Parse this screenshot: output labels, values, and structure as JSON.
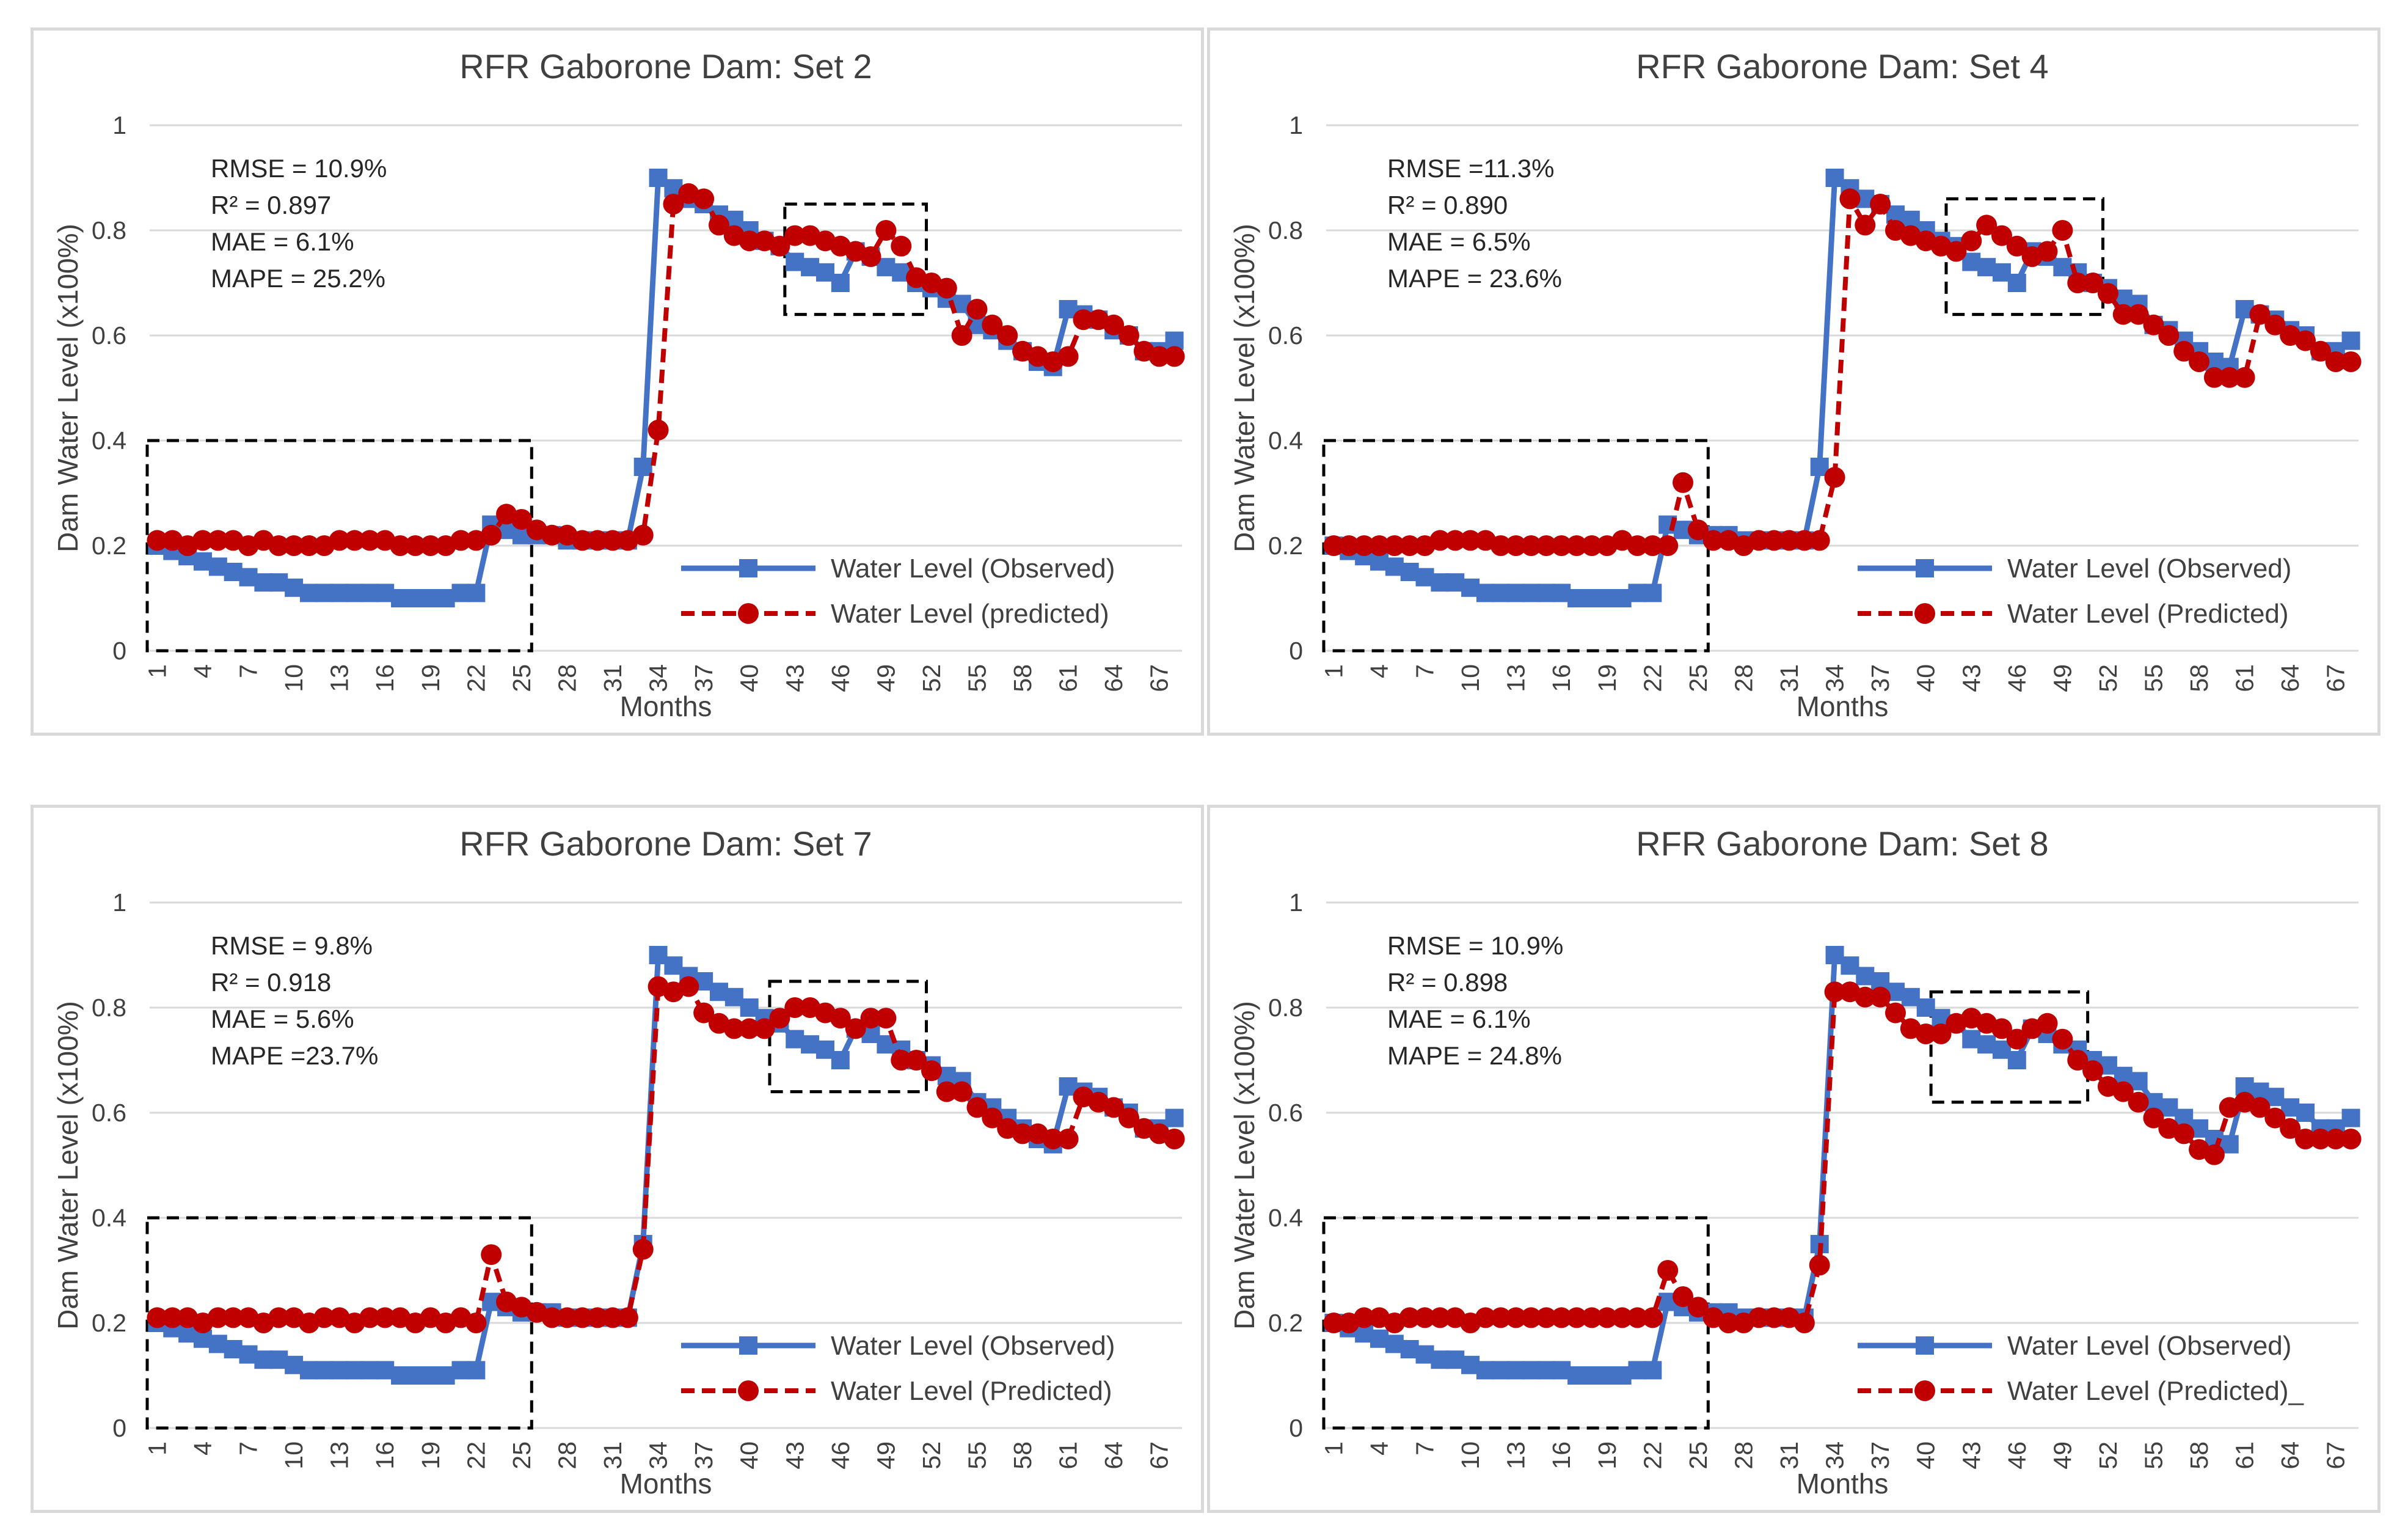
{
  "colors": {
    "observed": "#4472C4",
    "predicted": "#C00000",
    "grid": "#D9D9D9",
    "text": "#404040"
  },
  "chart_data": [
    {
      "type": "line",
      "title": "RFR Gaborone Dam: Set 2",
      "xlabel": "Months",
      "ylabel": "Dam Water Level (x100%)",
      "ylim": [
        0,
        1
      ],
      "y_ticks": [
        "0",
        "0.2",
        "0.4",
        "0.6",
        "0.8",
        "1"
      ],
      "x_ticks": [
        "1",
        "4",
        "7",
        "10",
        "13",
        "16",
        "19",
        "22",
        "25",
        "28",
        "31",
        "34",
        "37",
        "40",
        "43",
        "46",
        "49",
        "52",
        "55",
        "58",
        "61",
        "64",
        "67"
      ],
      "metrics": [
        {
          "name": "RMSE",
          "text": "RMSE = 10.9%"
        },
        {
          "name": "R2",
          "text": "R² = 0.897"
        },
        {
          "name": "MAE",
          "text": "MAE = 6.1%"
        },
        {
          "name": "MAPE",
          "text": "MAPE = 25.2%"
        }
      ],
      "highlight_regions": [
        {
          "x_range": [
            1,
            25
          ],
          "y_range": [
            0,
            0.4
          ]
        },
        {
          "x_range": [
            43,
            51
          ],
          "y_range": [
            0.64,
            0.85
          ]
        }
      ],
      "series": [
        {
          "name": "Water Level (Observed)",
          "style": "observed",
          "values": [
            0.2,
            0.19,
            0.18,
            0.17,
            0.16,
            0.15,
            0.14,
            0.13,
            0.13,
            0.12,
            0.11,
            0.11,
            0.11,
            0.11,
            0.11,
            0.11,
            0.1,
            0.1,
            0.1,
            0.1,
            0.11,
            0.11,
            0.24,
            0.23,
            0.22,
            0.22,
            0.22,
            0.21,
            0.21,
            0.21,
            0.21,
            0.21,
            0.35,
            0.9,
            0.88,
            0.86,
            0.85,
            0.83,
            0.82,
            0.8,
            0.78,
            0.77,
            0.74,
            0.73,
            0.72,
            0.7,
            0.76,
            0.75,
            0.73,
            0.72,
            0.7,
            0.69,
            0.67,
            0.66,
            0.62,
            0.61,
            0.59,
            0.57,
            0.55,
            0.54,
            0.65,
            0.64,
            0.63,
            0.61,
            0.6,
            0.57,
            0.57,
            0.59
          ]
        },
        {
          "name": "Water Level (predicted)",
          "style": "predicted",
          "values": [
            0.21,
            0.21,
            0.2,
            0.21,
            0.21,
            0.21,
            0.2,
            0.21,
            0.2,
            0.2,
            0.2,
            0.2,
            0.21,
            0.21,
            0.21,
            0.21,
            0.2,
            0.2,
            0.2,
            0.2,
            0.21,
            0.21,
            0.22,
            0.26,
            0.25,
            0.23,
            0.22,
            0.22,
            0.21,
            0.21,
            0.21,
            0.21,
            0.22,
            0.42,
            0.85,
            0.87,
            0.86,
            0.81,
            0.79,
            0.78,
            0.78,
            0.77,
            0.79,
            0.79,
            0.78,
            0.77,
            0.76,
            0.75,
            0.8,
            0.77,
            0.71,
            0.7,
            0.69,
            0.6,
            0.65,
            0.62,
            0.6,
            0.57,
            0.56,
            0.55,
            0.56,
            0.63,
            0.63,
            0.62,
            0.6,
            0.57,
            0.56,
            0.56
          ]
        }
      ],
      "legend": [
        {
          "label": "Water Level (Observed)",
          "style": "observed"
        },
        {
          "label": "Water Level (predicted)",
          "style": "predicted"
        }
      ]
    },
    {
      "type": "line",
      "title": "RFR Gaborone Dam: Set 4",
      "xlabel": "Months",
      "ylabel": "Dam Water Level (x100%)",
      "ylim": [
        0,
        1
      ],
      "y_ticks": [
        "0",
        "0.2",
        "0.4",
        "0.6",
        "0.8",
        "1"
      ],
      "x_ticks": [
        "1",
        "4",
        "7",
        "10",
        "13",
        "16",
        "19",
        "22",
        "25",
        "28",
        "31",
        "34",
        "37",
        "40",
        "43",
        "46",
        "49",
        "52",
        "55",
        "58",
        "61",
        "64",
        "67"
      ],
      "metrics": [
        {
          "name": "RMSE",
          "text": "RMSE =11.3%"
        },
        {
          "name": "R2",
          "text": "R² = 0.890"
        },
        {
          "name": "MAE",
          "text": "MAE = 6.5%"
        },
        {
          "name": "MAPE",
          "text": "MAPE = 23.6%"
        }
      ],
      "highlight_regions": [
        {
          "x_range": [
            1,
            25
          ],
          "y_range": [
            0,
            0.4
          ]
        },
        {
          "x_range": [
            42,
            51
          ],
          "y_range": [
            0.64,
            0.86
          ]
        }
      ],
      "series": [
        {
          "name": "Water Level (Observed)",
          "style": "observed",
          "values": [
            0.2,
            0.19,
            0.18,
            0.17,
            0.16,
            0.15,
            0.14,
            0.13,
            0.13,
            0.12,
            0.11,
            0.11,
            0.11,
            0.11,
            0.11,
            0.11,
            0.1,
            0.1,
            0.1,
            0.1,
            0.11,
            0.11,
            0.24,
            0.23,
            0.22,
            0.22,
            0.22,
            0.21,
            0.21,
            0.21,
            0.21,
            0.21,
            0.35,
            0.9,
            0.88,
            0.86,
            0.85,
            0.83,
            0.82,
            0.8,
            0.78,
            0.77,
            0.74,
            0.73,
            0.72,
            0.7,
            0.76,
            0.75,
            0.73,
            0.72,
            0.7,
            0.69,
            0.67,
            0.66,
            0.62,
            0.61,
            0.59,
            0.57,
            0.55,
            0.54,
            0.65,
            0.64,
            0.63,
            0.61,
            0.6,
            0.57,
            0.57,
            0.59
          ]
        },
        {
          "name": "Water Level (Predicted)",
          "style": "predicted",
          "values": [
            0.2,
            0.2,
            0.2,
            0.2,
            0.2,
            0.2,
            0.2,
            0.21,
            0.21,
            0.21,
            0.21,
            0.2,
            0.2,
            0.2,
            0.2,
            0.2,
            0.2,
            0.2,
            0.2,
            0.21,
            0.2,
            0.2,
            0.2,
            0.32,
            0.23,
            0.21,
            0.21,
            0.2,
            0.21,
            0.21,
            0.21,
            0.21,
            0.21,
            0.33,
            0.86,
            0.81,
            0.85,
            0.8,
            0.79,
            0.78,
            0.77,
            0.76,
            0.78,
            0.81,
            0.79,
            0.77,
            0.75,
            0.76,
            0.8,
            0.7,
            0.7,
            0.68,
            0.64,
            0.64,
            0.62,
            0.6,
            0.57,
            0.55,
            0.52,
            0.52,
            0.52,
            0.64,
            0.62,
            0.6,
            0.59,
            0.57,
            0.55,
            0.55
          ]
        }
      ],
      "legend": [
        {
          "label": "Water Level (Observed)",
          "style": "observed"
        },
        {
          "label": "Water Level (Predicted)",
          "style": "predicted"
        }
      ]
    },
    {
      "type": "line",
      "title": "RFR Gaborone Dam: Set 7",
      "xlabel": "Months",
      "ylabel": "Dam Water Level (x100%)",
      "ylim": [
        0,
        1
      ],
      "y_ticks": [
        "0",
        "0.2",
        "0.4",
        "0.6",
        "0.8",
        "1"
      ],
      "x_ticks": [
        "1",
        "4",
        "7",
        "10",
        "13",
        "16",
        "19",
        "22",
        "25",
        "28",
        "31",
        "34",
        "37",
        "40",
        "43",
        "46",
        "49",
        "52",
        "55",
        "58",
        "61",
        "64",
        "67"
      ],
      "metrics": [
        {
          "name": "RMSE",
          "text": "RMSE = 9.8%"
        },
        {
          "name": "R2",
          "text": "R² = 0.918"
        },
        {
          "name": "MAE",
          "text": "MAE = 5.6%"
        },
        {
          "name": "MAPE",
          "text": "MAPE =23.7%"
        }
      ],
      "highlight_regions": [
        {
          "x_range": [
            1,
            25
          ],
          "y_range": [
            0,
            0.4
          ]
        },
        {
          "x_range": [
            42,
            51
          ],
          "y_range": [
            0.64,
            0.85
          ]
        }
      ],
      "series": [
        {
          "name": "Water Level (Observed)",
          "style": "observed",
          "values": [
            0.2,
            0.19,
            0.18,
            0.17,
            0.16,
            0.15,
            0.14,
            0.13,
            0.13,
            0.12,
            0.11,
            0.11,
            0.11,
            0.11,
            0.11,
            0.11,
            0.1,
            0.1,
            0.1,
            0.1,
            0.11,
            0.11,
            0.24,
            0.23,
            0.22,
            0.22,
            0.22,
            0.21,
            0.21,
            0.21,
            0.21,
            0.21,
            0.35,
            0.9,
            0.88,
            0.86,
            0.85,
            0.83,
            0.82,
            0.8,
            0.78,
            0.77,
            0.74,
            0.73,
            0.72,
            0.7,
            0.76,
            0.75,
            0.73,
            0.72,
            0.7,
            0.69,
            0.67,
            0.66,
            0.62,
            0.61,
            0.59,
            0.57,
            0.55,
            0.54,
            0.65,
            0.64,
            0.63,
            0.61,
            0.6,
            0.57,
            0.57,
            0.59
          ]
        },
        {
          "name": "Water Level (Predicted)",
          "style": "predicted",
          "values": [
            0.21,
            0.21,
            0.21,
            0.2,
            0.21,
            0.21,
            0.21,
            0.2,
            0.21,
            0.21,
            0.2,
            0.21,
            0.21,
            0.2,
            0.21,
            0.21,
            0.21,
            0.2,
            0.21,
            0.2,
            0.21,
            0.2,
            0.33,
            0.24,
            0.23,
            0.22,
            0.21,
            0.21,
            0.21,
            0.21,
            0.21,
            0.21,
            0.34,
            0.84,
            0.83,
            0.84,
            0.79,
            0.77,
            0.76,
            0.76,
            0.76,
            0.78,
            0.8,
            0.8,
            0.79,
            0.78,
            0.76,
            0.78,
            0.78,
            0.7,
            0.7,
            0.68,
            0.64,
            0.64,
            0.61,
            0.59,
            0.57,
            0.56,
            0.56,
            0.55,
            0.55,
            0.63,
            0.62,
            0.61,
            0.59,
            0.57,
            0.56,
            0.55
          ]
        }
      ],
      "legend": [
        {
          "label": "Water Level (Observed)",
          "style": "observed"
        },
        {
          "label": "Water Level (Predicted)",
          "style": "predicted"
        }
      ]
    },
    {
      "type": "line",
      "title": "RFR Gaborone Dam: Set 8",
      "xlabel": "Months",
      "ylabel": "Dam Water Level (x100%)",
      "ylim": [
        0,
        1
      ],
      "y_ticks": [
        "0",
        "0.2",
        "0.4",
        "0.6",
        "0.8",
        "1"
      ],
      "x_ticks": [
        "1",
        "4",
        "7",
        "10",
        "13",
        "16",
        "19",
        "22",
        "25",
        "28",
        "31",
        "34",
        "37",
        "40",
        "43",
        "46",
        "49",
        "52",
        "55",
        "58",
        "61",
        "64",
        "67"
      ],
      "metrics": [
        {
          "name": "RMSE",
          "text": "RMSE = 10.9%"
        },
        {
          "name": "R2",
          "text": "R² = 0.898"
        },
        {
          "name": "MAE",
          "text": "MAE = 6.1%"
        },
        {
          "name": "MAPE",
          "text": "MAPE = 24.8%"
        }
      ],
      "highlight_regions": [
        {
          "x_range": [
            1,
            25
          ],
          "y_range": [
            0,
            0.4
          ]
        },
        {
          "x_range": [
            41,
            50
          ],
          "y_range": [
            0.62,
            0.83
          ]
        }
      ],
      "series": [
        {
          "name": "Water Level (Observed)",
          "style": "observed",
          "values": [
            0.2,
            0.19,
            0.18,
            0.17,
            0.16,
            0.15,
            0.14,
            0.13,
            0.13,
            0.12,
            0.11,
            0.11,
            0.11,
            0.11,
            0.11,
            0.11,
            0.1,
            0.1,
            0.1,
            0.1,
            0.11,
            0.11,
            0.24,
            0.23,
            0.22,
            0.22,
            0.22,
            0.21,
            0.21,
            0.21,
            0.21,
            0.21,
            0.35,
            0.9,
            0.88,
            0.86,
            0.85,
            0.83,
            0.82,
            0.8,
            0.78,
            0.77,
            0.74,
            0.73,
            0.72,
            0.7,
            0.76,
            0.75,
            0.73,
            0.72,
            0.7,
            0.69,
            0.67,
            0.66,
            0.62,
            0.61,
            0.59,
            0.57,
            0.55,
            0.54,
            0.65,
            0.64,
            0.63,
            0.61,
            0.6,
            0.57,
            0.57,
            0.59
          ]
        },
        {
          "name": "Water Level (Predicted)_",
          "style": "predicted",
          "values": [
            0.2,
            0.2,
            0.21,
            0.21,
            0.2,
            0.21,
            0.21,
            0.21,
            0.21,
            0.2,
            0.21,
            0.21,
            0.21,
            0.21,
            0.21,
            0.21,
            0.21,
            0.21,
            0.21,
            0.21,
            0.21,
            0.21,
            0.3,
            0.25,
            0.23,
            0.21,
            0.2,
            0.2,
            0.21,
            0.21,
            0.21,
            0.2,
            0.31,
            0.83,
            0.83,
            0.82,
            0.82,
            0.79,
            0.76,
            0.75,
            0.75,
            0.77,
            0.78,
            0.77,
            0.76,
            0.74,
            0.76,
            0.77,
            0.74,
            0.7,
            0.68,
            0.65,
            0.64,
            0.62,
            0.59,
            0.57,
            0.56,
            0.53,
            0.52,
            0.61,
            0.62,
            0.61,
            0.59,
            0.57,
            0.55,
            0.55,
            0.55,
            0.55
          ]
        }
      ],
      "legend": [
        {
          "label": "Water Level (Observed)",
          "style": "observed"
        },
        {
          "label": "Water Level (Predicted)_",
          "style": "predicted"
        }
      ]
    }
  ]
}
